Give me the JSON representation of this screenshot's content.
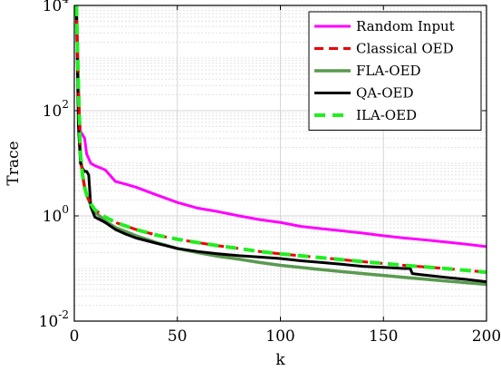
{
  "chart_data": {
    "type": "line",
    "xlabel": "k",
    "ylabel": "Trace",
    "xlim": [
      0,
      200
    ],
    "ylim": [
      0.01,
      10000
    ],
    "yscale": "log",
    "grid": true,
    "legend_position": "top-right",
    "x_ticks": [
      "0",
      "50",
      "100",
      "150",
      "200"
    ],
    "y_ticks": [
      {
        "base": "10",
        "exp": "4",
        "value": 10000
      },
      {
        "base": "10",
        "exp": "2",
        "value": 100
      },
      {
        "base": "10",
        "exp": "0",
        "value": 1
      },
      {
        "base": "10",
        "exp": "-2",
        "value": 0.01
      }
    ],
    "series": [
      {
        "name": "Random Input",
        "color": "#ff00ff",
        "dash": "solid",
        "points": [
          [
            1,
            8000
          ],
          [
            2,
            150
          ],
          [
            3,
            40
          ],
          [
            4,
            35
          ],
          [
            5,
            30
          ],
          [
            6,
            15
          ],
          [
            8,
            10
          ],
          [
            10,
            9
          ],
          [
            15,
            7.5
          ],
          [
            20,
            4.5
          ],
          [
            25,
            4
          ],
          [
            30,
            3.5
          ],
          [
            40,
            2.5
          ],
          [
            50,
            1.8
          ],
          [
            60,
            1.4
          ],
          [
            70,
            1.2
          ],
          [
            80,
            1.0
          ],
          [
            90,
            0.85
          ],
          [
            100,
            0.75
          ],
          [
            110,
            0.63
          ],
          [
            120,
            0.57
          ],
          [
            130,
            0.52
          ],
          [
            140,
            0.47
          ],
          [
            150,
            0.42
          ],
          [
            160,
            0.38
          ],
          [
            170,
            0.35
          ],
          [
            180,
            0.32
          ],
          [
            190,
            0.29
          ],
          [
            200,
            0.26
          ]
        ]
      },
      {
        "name": "Classical OED",
        "color": "#ee0000",
        "dash": "dashed-red",
        "points": [
          [
            1,
            10000
          ],
          [
            2,
            300
          ],
          [
            3,
            15
          ],
          [
            4,
            6
          ],
          [
            5,
            3.5
          ],
          [
            6,
            2.5
          ],
          [
            8,
            1.7
          ],
          [
            10,
            1.3
          ],
          [
            15,
            0.95
          ],
          [
            20,
            0.75
          ],
          [
            30,
            0.55
          ],
          [
            40,
            0.43
          ],
          [
            50,
            0.36
          ],
          [
            60,
            0.31
          ],
          [
            70,
            0.27
          ],
          [
            80,
            0.24
          ],
          [
            90,
            0.21
          ],
          [
            100,
            0.19
          ],
          [
            120,
            0.16
          ],
          [
            140,
            0.135
          ],
          [
            160,
            0.115
          ],
          [
            180,
            0.1
          ],
          [
            200,
            0.085
          ]
        ]
      },
      {
        "name": "FLA-OED",
        "color": "#5a9a50",
        "dash": "solid",
        "points": [
          [
            1,
            10000
          ],
          [
            2,
            300
          ],
          [
            3,
            15
          ],
          [
            4,
            6
          ],
          [
            5,
            3.5
          ],
          [
            6,
            2.5
          ],
          [
            8,
            1.6
          ],
          [
            10,
            1.2
          ],
          [
            15,
            0.8
          ],
          [
            20,
            0.6
          ],
          [
            30,
            0.42
          ],
          [
            40,
            0.31
          ],
          [
            50,
            0.24
          ],
          [
            60,
            0.2
          ],
          [
            70,
            0.17
          ],
          [
            80,
            0.15
          ],
          [
            90,
            0.13
          ],
          [
            100,
            0.115
          ],
          [
            120,
            0.095
          ],
          [
            140,
            0.08
          ],
          [
            160,
            0.068
          ],
          [
            180,
            0.058
          ],
          [
            200,
            0.05
          ]
        ]
      },
      {
        "name": "QA-OED",
        "color": "#000000",
        "dash": "solid",
        "points": [
          [
            1,
            10000
          ],
          [
            2,
            50
          ],
          [
            3,
            10
          ],
          [
            4,
            8
          ],
          [
            5,
            7
          ],
          [
            6,
            7
          ],
          [
            7,
            6
          ],
          [
            8,
            1.5
          ],
          [
            10,
            0.95
          ],
          [
            15,
            0.75
          ],
          [
            20,
            0.55
          ],
          [
            25,
            0.45
          ],
          [
            30,
            0.38
          ],
          [
            40,
            0.3
          ],
          [
            50,
            0.24
          ],
          [
            60,
            0.21
          ],
          [
            70,
            0.19
          ],
          [
            80,
            0.175
          ],
          [
            90,
            0.165
          ],
          [
            100,
            0.155
          ],
          [
            110,
            0.14
          ],
          [
            120,
            0.13
          ],
          [
            130,
            0.12
          ],
          [
            140,
            0.11
          ],
          [
            150,
            0.105
          ],
          [
            160,
            0.1
          ],
          [
            163,
            0.1
          ],
          [
            164,
            0.08
          ],
          [
            170,
            0.075
          ],
          [
            180,
            0.068
          ],
          [
            190,
            0.062
          ],
          [
            200,
            0.056
          ]
        ]
      },
      {
        "name": "ILA-OED",
        "color": "#22ee22",
        "dash": "dashed-green",
        "points": [
          [
            1,
            10000
          ],
          [
            2,
            300
          ],
          [
            3,
            15
          ],
          [
            4,
            6
          ],
          [
            5,
            3.5
          ],
          [
            6,
            2.5
          ],
          [
            8,
            1.7
          ],
          [
            10,
            1.3
          ],
          [
            15,
            0.95
          ],
          [
            20,
            0.75
          ],
          [
            30,
            0.55
          ],
          [
            40,
            0.43
          ],
          [
            50,
            0.36
          ],
          [
            60,
            0.31
          ],
          [
            70,
            0.27
          ],
          [
            80,
            0.24
          ],
          [
            90,
            0.21
          ],
          [
            100,
            0.19
          ],
          [
            120,
            0.16
          ],
          [
            140,
            0.135
          ],
          [
            160,
            0.115
          ],
          [
            180,
            0.1
          ],
          [
            200,
            0.085
          ]
        ]
      }
    ]
  }
}
